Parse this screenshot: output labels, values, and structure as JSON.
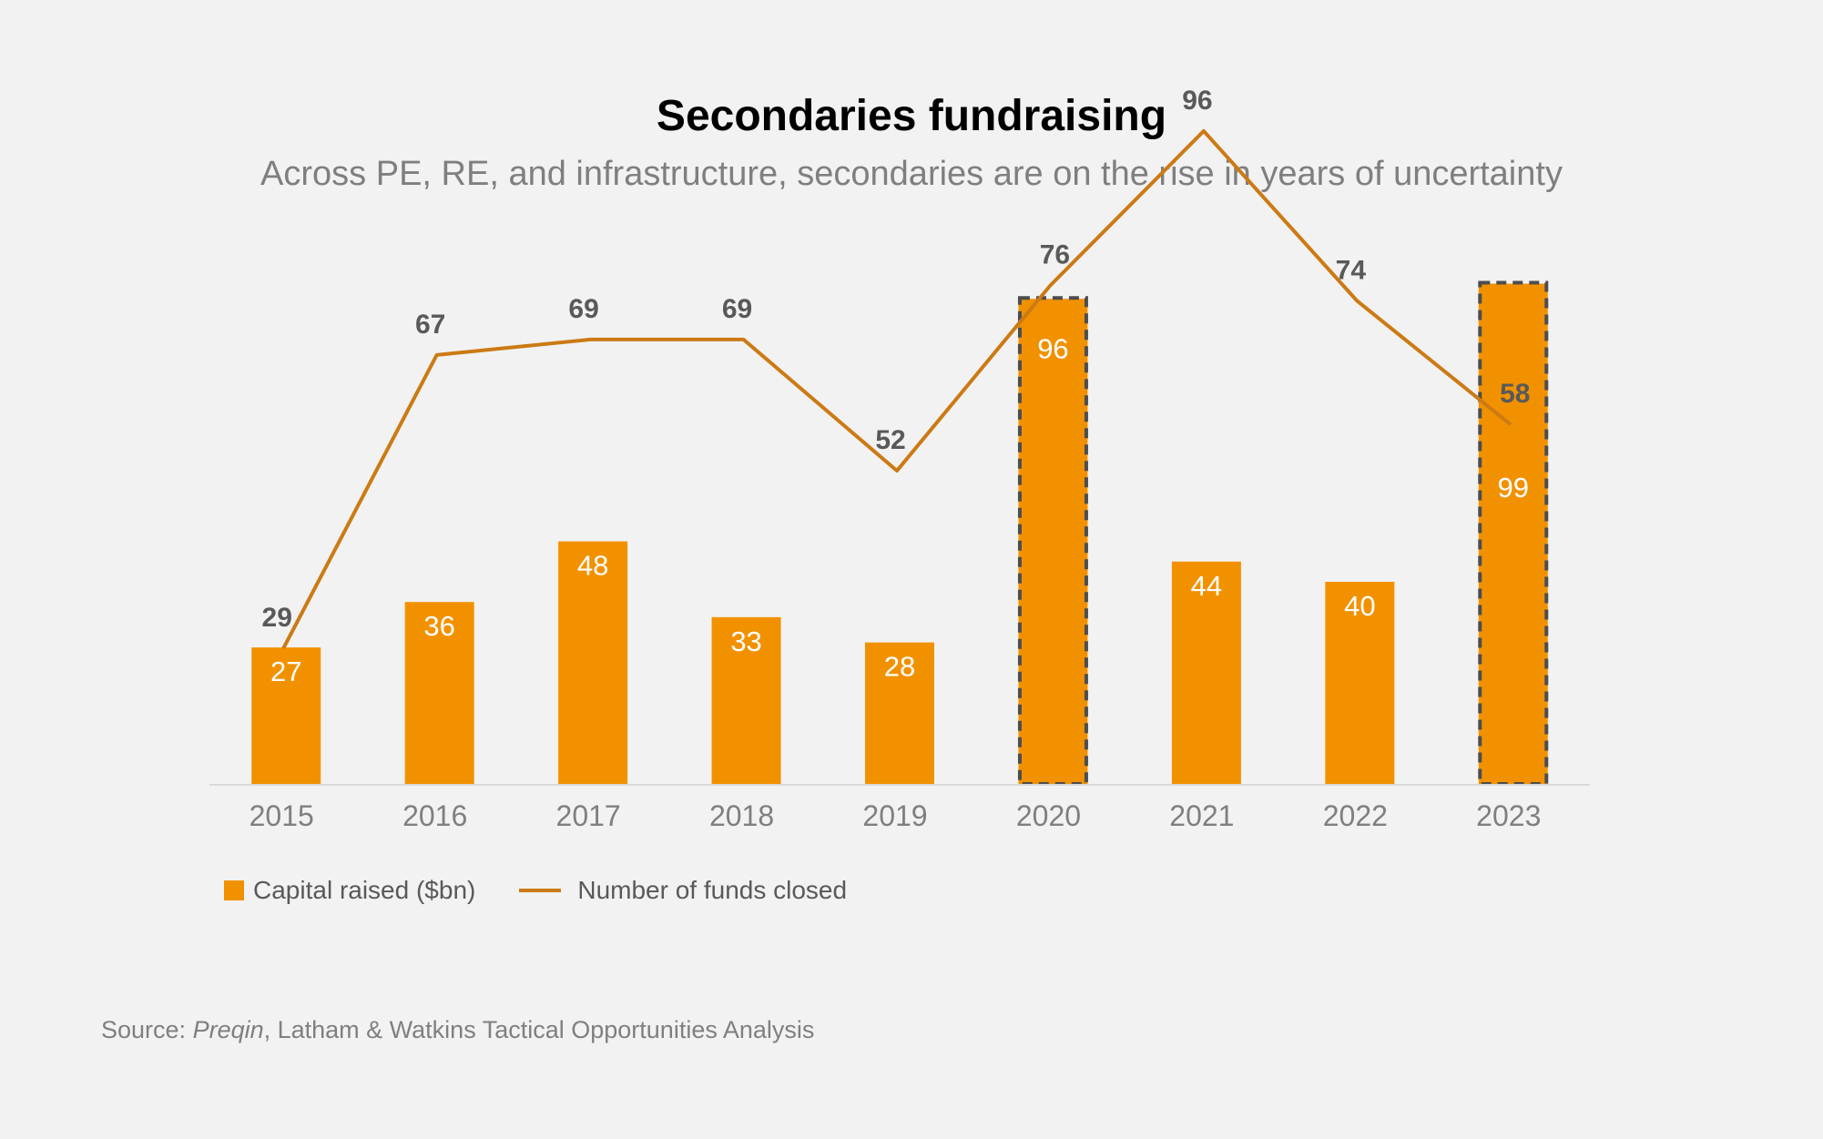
{
  "colors": {
    "background": "#f2f2f2",
    "bar": "#f29100",
    "line": "#cc7a14",
    "highlight_border": "#4d4d4d",
    "axis": "#d9d9d9"
  },
  "header": {
    "title": "Secondaries fundraising",
    "subtitle": "Across PE, RE, and infrastructure, secondaries are on the rise in years of uncertainty"
  },
  "legend": {
    "bars_label": "Capital raised ($bn)",
    "line_label": "Number of funds closed"
  },
  "source": {
    "prefix": "Source: ",
    "italic": "Preqin",
    "rest": ", Latham & Watkins Tactical Opportunities Analysis"
  },
  "chart_data": {
    "type": "bar",
    "title": "Secondaries fundraising",
    "subtitle": "Across PE, RE, and infrastructure, secondaries are on the rise in years of uncertainty",
    "categories": [
      "2015",
      "2016",
      "2017",
      "2018",
      "2019",
      "2020",
      "2021",
      "2022",
      "2023"
    ],
    "series": [
      {
        "name": "Capital raised ($bn)",
        "type": "bar",
        "values": [
          27,
          36,
          48,
          33,
          28,
          96,
          44,
          40,
          99
        ],
        "highlighted": [
          "2020",
          "2023"
        ]
      },
      {
        "name": "Number of funds closed",
        "type": "line",
        "values": [
          29,
          67,
          69,
          69,
          52,
          76,
          96,
          74,
          58
        ]
      }
    ],
    "xlabel": "",
    "ylabel": "",
    "grid": false,
    "legend_position": "bottom-left"
  }
}
